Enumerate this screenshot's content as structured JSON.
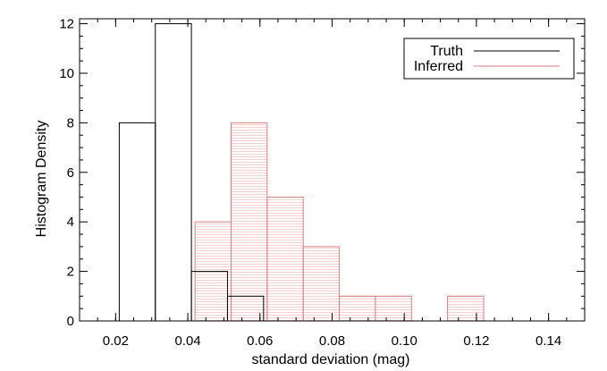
{
  "chart_data": {
    "type": "histogram",
    "xlabel": "standard deviation (mag)",
    "ylabel": "Histogram Density",
    "xlim": [
      0.01,
      0.15
    ],
    "ylim": [
      0,
      12.2
    ],
    "x_ticks": [
      "0.02",
      "0.04",
      "0.06",
      "0.08",
      "0.10",
      "0.12",
      "0.14"
    ],
    "x_tick_values": [
      0.02,
      0.04,
      0.06,
      0.08,
      0.1,
      0.12,
      0.14
    ],
    "y_ticks": [
      "0",
      "2",
      "4",
      "6",
      "8",
      "10",
      "12"
    ],
    "y_tick_values": [
      0,
      2,
      4,
      6,
      8,
      10,
      12
    ],
    "legend_position": "top-right",
    "series": [
      {
        "name": "Truth",
        "color": "#000000",
        "bins": [
          {
            "x0": 0.021,
            "x1": 0.031,
            "value": 8
          },
          {
            "x0": 0.031,
            "x1": 0.041,
            "value": 12
          },
          {
            "x0": 0.041,
            "x1": 0.051,
            "value": 2
          },
          {
            "x0": 0.051,
            "x1": 0.061,
            "value": 1
          }
        ]
      },
      {
        "name": "Inferred",
        "color": "#d98080",
        "bins": [
          {
            "x0": 0.042,
            "x1": 0.052,
            "value": 4
          },
          {
            "x0": 0.052,
            "x1": 0.062,
            "value": 8
          },
          {
            "x0": 0.062,
            "x1": 0.072,
            "value": 5
          },
          {
            "x0": 0.072,
            "x1": 0.082,
            "value": 3
          },
          {
            "x0": 0.082,
            "x1": 0.092,
            "value": 1
          },
          {
            "x0": 0.092,
            "x1": 0.102,
            "value": 1
          },
          {
            "x0": 0.112,
            "x1": 0.122,
            "value": 1
          }
        ]
      }
    ]
  }
}
